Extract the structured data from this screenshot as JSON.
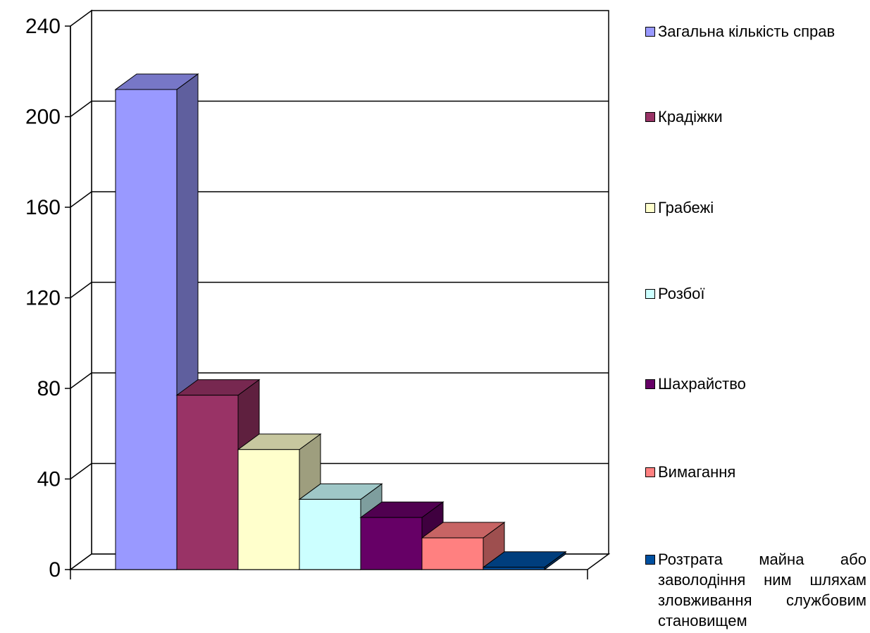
{
  "chart_data": {
    "type": "bar",
    "style": "3d",
    "ylim": [
      0,
      240
    ],
    "yticks": [
      "0",
      "40",
      "80",
      "120",
      "160",
      "200",
      "240"
    ],
    "grid": true,
    "legend_position": "right",
    "series": [
      {
        "name": "Загальна  кількість справ",
        "value": 212,
        "color": "#9999ff"
      },
      {
        "name": "Крадіжки",
        "value": 77,
        "color": "#993366"
      },
      {
        "name": "Грабежі",
        "value": 53,
        "color": "#ffffcc"
      },
      {
        "name": "Розбої",
        "value": 31,
        "color": "#ccffff"
      },
      {
        "name": "Шахрайство",
        "value": 23,
        "color": "#660066"
      },
      {
        "name": "Вимагання",
        "value": 14,
        "color": "#ff8080"
      },
      {
        "name": "Розтрата  майна  або заволодіння  ним  шляхам зловживання  службовим становищем",
        "value": 1,
        "color": "#0050a0"
      }
    ]
  }
}
